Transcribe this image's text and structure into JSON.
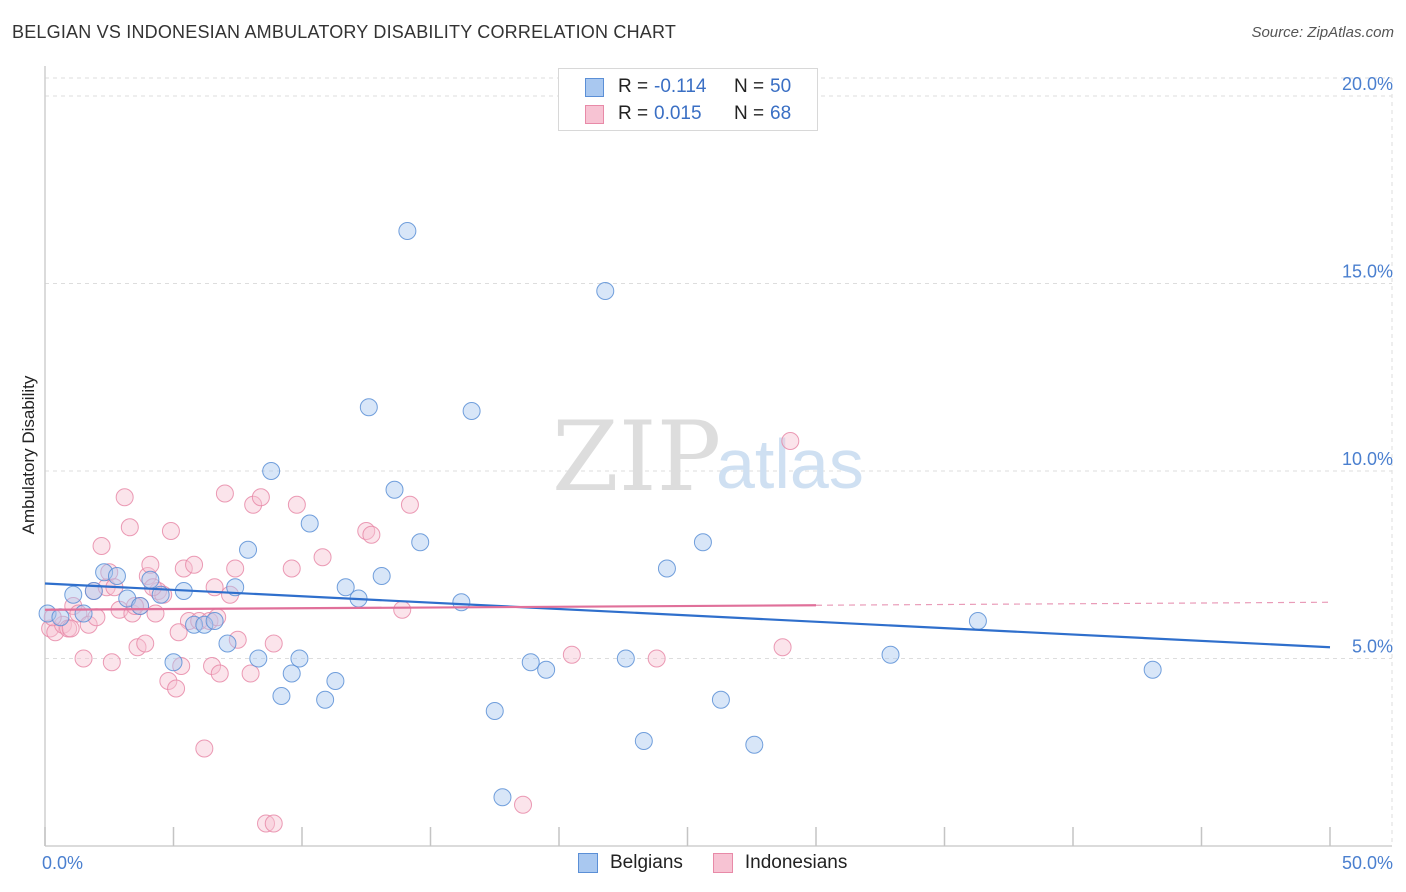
{
  "header": {
    "title": "BELGIAN VS INDONESIAN AMBULATORY DISABILITY CORRELATION CHART",
    "source": "Source: ZipAtlas.com"
  },
  "watermark": {
    "zip": "ZIP",
    "atlas": "atlas"
  },
  "legend": {
    "rows": [
      {
        "r_label": "R =",
        "r_value": "-0.114",
        "n_label": "N =",
        "n_value": "50",
        "color": "#a9c8f0",
        "border": "#5b8fd6"
      },
      {
        "r_label": "R =",
        "r_value": "0.015",
        "n_label": "N =",
        "n_value": "68",
        "color": "#f7c3d3",
        "border": "#e88aa8"
      }
    ]
  },
  "bottom_legend": {
    "belgians": "Belgians",
    "indonesians": "Indonesians"
  },
  "chart_data": {
    "type": "scatter",
    "title": "BELGIAN VS INDONESIAN AMBULATORY DISABILITY CORRELATION CHART",
    "xlabel": "",
    "ylabel": "Ambulatory Disability",
    "xlim": [
      0,
      50
    ],
    "ylim": [
      0,
      20.8
    ],
    "x_tick_labels": [
      {
        "value": 0,
        "label": "0.0%"
      },
      {
        "value": 50,
        "label": "50.0%"
      }
    ],
    "y_ticks": [
      {
        "value": 5,
        "label": "5.0%"
      },
      {
        "value": 10,
        "label": "10.0%"
      },
      {
        "value": 15,
        "label": "15.0%"
      },
      {
        "value": 20,
        "label": "20.0%"
      }
    ],
    "x_minor_ticks": [
      0,
      5,
      10,
      15,
      20,
      25,
      30,
      35,
      40,
      45,
      50
    ],
    "colors": {
      "belgians": "#5b8fd6",
      "belgians_fill": "#a9c8f0",
      "indonesians": "#e88aa8",
      "indonesians_fill": "#f7c3d3",
      "belgians_line": "#2f6fcc",
      "indonesians_line": "#e0709a"
    },
    "series": [
      {
        "name": "Belgians",
        "points": [
          [
            0.1,
            6.2
          ],
          [
            0.6,
            6.1
          ],
          [
            1.1,
            6.7
          ],
          [
            1.5,
            6.2
          ],
          [
            1.9,
            6.8
          ],
          [
            2.3,
            7.3
          ],
          [
            2.8,
            7.2
          ],
          [
            3.2,
            6.6
          ],
          [
            3.7,
            6.4
          ],
          [
            4.1,
            7.1
          ],
          [
            4.5,
            6.7
          ],
          [
            5.0,
            4.9
          ],
          [
            5.4,
            6.8
          ],
          [
            5.8,
            5.9
          ],
          [
            6.2,
            5.9
          ],
          [
            6.6,
            6.0
          ],
          [
            7.1,
            5.4
          ],
          [
            7.4,
            6.9
          ],
          [
            7.9,
            7.9
          ],
          [
            8.3,
            5.0
          ],
          [
            8.8,
            10.0
          ],
          [
            9.2,
            4.0
          ],
          [
            9.6,
            4.6
          ],
          [
            9.9,
            5.0
          ],
          [
            10.3,
            8.6
          ],
          [
            10.9,
            3.9
          ],
          [
            11.3,
            4.4
          ],
          [
            11.7,
            6.9
          ],
          [
            12.2,
            6.6
          ],
          [
            12.6,
            11.7
          ],
          [
            13.1,
            7.2
          ],
          [
            13.6,
            9.5
          ],
          [
            14.1,
            16.4
          ],
          [
            14.6,
            8.1
          ],
          [
            16.2,
            6.5
          ],
          [
            16.6,
            11.6
          ],
          [
            17.5,
            3.6
          ],
          [
            17.8,
            1.3
          ],
          [
            18.9,
            4.9
          ],
          [
            19.5,
            4.7
          ],
          [
            21.8,
            14.8
          ],
          [
            22.6,
            5.0
          ],
          [
            23.3,
            2.8
          ],
          [
            24.2,
            7.4
          ],
          [
            25.6,
            8.1
          ],
          [
            26.3,
            3.9
          ],
          [
            27.6,
            2.7
          ],
          [
            32.9,
            5.1
          ],
          [
            36.3,
            6.0
          ],
          [
            43.1,
            4.7
          ]
        ]
      },
      {
        "name": "Indonesians",
        "points": [
          [
            0.2,
            5.8
          ],
          [
            0.4,
            5.7
          ],
          [
            0.7,
            5.9
          ],
          [
            0.9,
            5.8
          ],
          [
            1.1,
            6.4
          ],
          [
            1.3,
            6.2
          ],
          [
            1.5,
            5.0
          ],
          [
            1.7,
            5.9
          ],
          [
            1.9,
            6.8
          ],
          [
            2.2,
            8.0
          ],
          [
            2.4,
            6.9
          ],
          [
            2.5,
            7.3
          ],
          [
            2.7,
            6.9
          ],
          [
            2.9,
            6.3
          ],
          [
            3.1,
            9.3
          ],
          [
            3.3,
            8.5
          ],
          [
            3.4,
            6.2
          ],
          [
            3.6,
            5.3
          ],
          [
            3.7,
            6.4
          ],
          [
            3.9,
            5.4
          ],
          [
            4.0,
            7.2
          ],
          [
            4.1,
            7.5
          ],
          [
            4.3,
            6.2
          ],
          [
            4.4,
            6.8
          ],
          [
            4.6,
            6.7
          ],
          [
            4.8,
            4.4
          ],
          [
            4.9,
            8.4
          ],
          [
            5.1,
            4.2
          ],
          [
            5.3,
            4.8
          ],
          [
            5.4,
            7.4
          ],
          [
            5.6,
            6.0
          ],
          [
            5.8,
            7.5
          ],
          [
            6.0,
            6.0
          ],
          [
            6.2,
            2.6
          ],
          [
            6.4,
            6.0
          ],
          [
            6.5,
            4.8
          ],
          [
            6.6,
            6.9
          ],
          [
            6.8,
            4.6
          ],
          [
            7.0,
            9.4
          ],
          [
            7.2,
            6.7
          ],
          [
            7.4,
            7.4
          ],
          [
            7.5,
            5.5
          ],
          [
            8.0,
            4.6
          ],
          [
            8.1,
            9.1
          ],
          [
            8.4,
            9.3
          ],
          [
            8.6,
            0.6
          ],
          [
            8.9,
            5.4
          ],
          [
            8.9,
            0.6
          ],
          [
            9.6,
            7.4
          ],
          [
            9.8,
            9.1
          ],
          [
            10.8,
            7.7
          ],
          [
            12.5,
            8.4
          ],
          [
            12.7,
            8.3
          ],
          [
            13.9,
            6.3
          ],
          [
            14.2,
            9.1
          ],
          [
            18.6,
            1.1
          ],
          [
            20.5,
            5.1
          ],
          [
            23.8,
            5.0
          ],
          [
            28.7,
            5.3
          ],
          [
            29.0,
            10.8
          ],
          [
            0.3,
            6.1
          ],
          [
            1.0,
            5.8
          ],
          [
            2.0,
            6.1
          ],
          [
            2.6,
            4.9
          ],
          [
            4.2,
            6.9
          ],
          [
            5.2,
            5.7
          ],
          [
            3.5,
            6.4
          ],
          [
            6.7,
            6.1
          ]
        ]
      }
    ],
    "trend_lines": [
      {
        "name": "Belgians",
        "x1": 0,
        "y1": 7.0,
        "x2": 50,
        "y2": 5.3,
        "dashed_from": null
      },
      {
        "name": "Indonesians",
        "x1": 0,
        "y1": 6.3,
        "x2": 50,
        "y2": 6.5,
        "dashed_from": 30
      }
    ]
  }
}
